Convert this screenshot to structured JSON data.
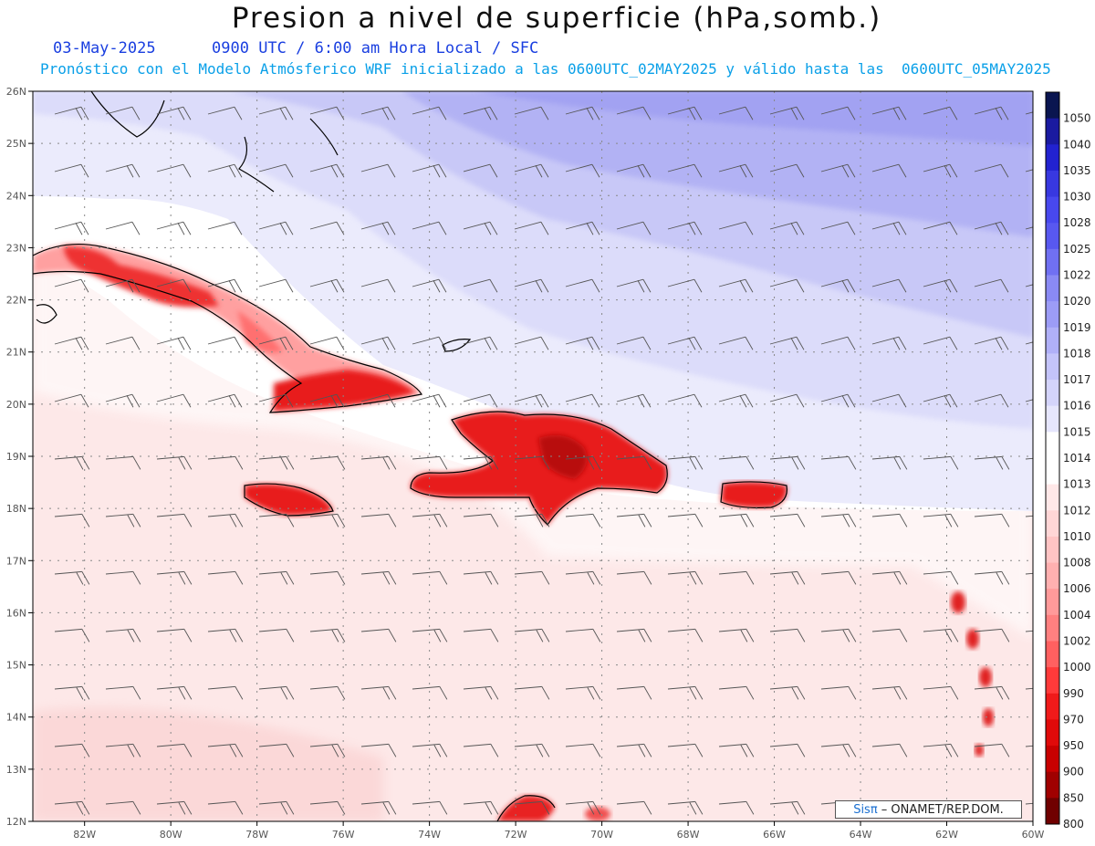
{
  "header": {
    "title": "Presion a nivel de superficie (hPa,somb.)",
    "date": "03-May-2025",
    "time": "0900 UTC / 6:00 am Hora Local / SFC",
    "forecast": "Pronóstico con el Modelo Atmósferico WRF inicializado a las 0600UTC_02MAY2025 y válido hasta las  0600UTC_05MAY2025"
  },
  "map": {
    "lon_ticks": [
      "82W",
      "80W",
      "78W",
      "76W",
      "74W",
      "72W",
      "70W",
      "68W",
      "66W",
      "64W",
      "62W",
      "60W"
    ],
    "lat_ticks": [
      "26N",
      "25N",
      "24N",
      "23N",
      "22N",
      "21N",
      "20N",
      "19N",
      "18N",
      "17N",
      "16N",
      "15N",
      "14N",
      "13N",
      "12N"
    ],
    "lon_range": [
      -83.2,
      -60
    ],
    "lat_range": [
      12,
      26
    ]
  },
  "colorbar": {
    "labels": [
      "1050",
      "1040",
      "1035",
      "1030",
      "1028",
      "1025",
      "1022",
      "1020",
      "1019",
      "1018",
      "1017",
      "1016",
      "1015",
      "1014",
      "1013",
      "1012",
      "1010",
      "1008",
      "1006",
      "1004",
      "1002",
      "1000",
      "990",
      "970",
      "950",
      "900",
      "850",
      "800"
    ],
    "colors": [
      "#0a1550",
      "#1a1aa0",
      "#2222d0",
      "#3838e0",
      "#4848ee",
      "#5858f0",
      "#7070f2",
      "#8a8af4",
      "#9c9cf6",
      "#b0b0f8",
      "#c4c4fa",
      "#d4d4fb",
      "#e6e6fd",
      "#ffffff",
      "#ffffff",
      "#ffe8e8",
      "#ffd6d6",
      "#ffc4c4",
      "#ffb0b0",
      "#ff9a9a",
      "#ff8080",
      "#ff6060",
      "#ff3a3a",
      "#f01a1a",
      "#e00a0a",
      "#c80000",
      "#a00000",
      "#700000"
    ]
  },
  "credit": {
    "brand": "Sisπ",
    "text": " – ONAMET/REP.DOM."
  }
}
